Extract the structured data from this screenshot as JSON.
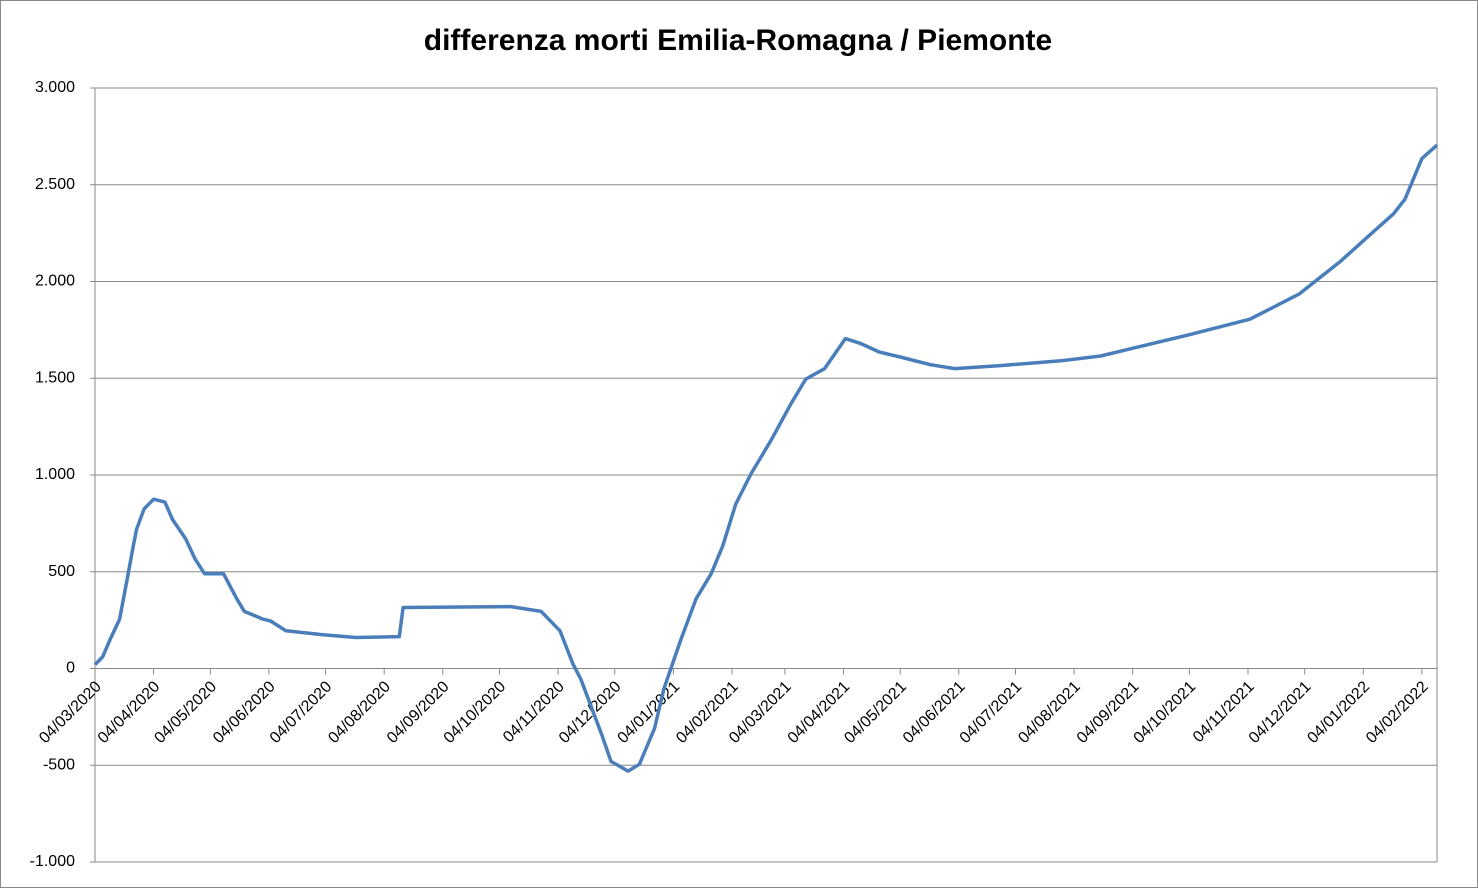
{
  "chart_data": {
    "type": "line",
    "title": "differenza morti Emilia-Romagna / Piemonte",
    "color": "#4a7ebb",
    "grid": true,
    "x": [
      "04/03/2020",
      "08/03/2020",
      "12/03/2020",
      "17/03/2020",
      "21/03/2020",
      "24/03/2020",
      "26/03/2020",
      "30/03/2020",
      "04/04/2020",
      "10/04/2020",
      "14/04/2020",
      "21/04/2020",
      "26/04/2020",
      "01/05/2020",
      "11/05/2020",
      "18/05/2020",
      "22/05/2020",
      "01/06/2020",
      "05/06/2020",
      "13/06/2020",
      "02/07/2020",
      "20/07/2020",
      "12/08/2020",
      "14/08/2020",
      "10/10/2020",
      "26/10/2020",
      "05/11/2020",
      "12/11/2020",
      "16/11/2020",
      "27/11/2020",
      "02/12/2020",
      "11/12/2020",
      "17/12/2020",
      "25/12/2020",
      "30/12/2020",
      "08/01/2021",
      "16/01/2021",
      "24/01/2021",
      "30/01/2021",
      "06/02/2021",
      "14/02/2021",
      "25/02/2021",
      "07/03/2021",
      "15/03/2021",
      "25/03/2021",
      "05/04/2021",
      "13/04/2021",
      "23/04/2021",
      "04/05/2021",
      "20/05/2021",
      "02/06/2021",
      "25/06/2021",
      "28/07/2021",
      "18/08/2021",
      "02/09/2021",
      "04/10/2021",
      "05/11/2021",
      "01/12/2021",
      "23/12/2021",
      "08/01/2022",
      "20/01/2022",
      "26/01/2022",
      "04/02/2022",
      "12/02/2022"
    ],
    "values": [
      20,
      60,
      150,
      255,
      460,
      620,
      720,
      825,
      875,
      860,
      770,
      670,
      565,
      490,
      490,
      360,
      295,
      255,
      245,
      195,
      175,
      160,
      165,
      315,
      320,
      295,
      195,
      20,
      -55,
      -340,
      -480,
      -530,
      -495,
      -310,
      -105,
      150,
      360,
      490,
      630,
      850,
      1005,
      1185,
      1365,
      1495,
      1550,
      1705,
      1680,
      1635,
      1610,
      1570,
      1550,
      1565,
      1590,
      1615,
      1650,
      1725,
      1805,
      1935,
      2105,
      2245,
      2350,
      2425,
      2635,
      2705
    ],
    "xlim": [
      "04/03/2020",
      "12/02/2022"
    ],
    "xticks": [
      "04/03/2020",
      "04/04/2020",
      "04/05/2020",
      "04/06/2020",
      "04/07/2020",
      "04/08/2020",
      "04/09/2020",
      "04/10/2020",
      "04/11/2020",
      "04/12/2020",
      "04/01/2021",
      "04/02/2021",
      "04/03/2021",
      "04/04/2021",
      "04/05/2021",
      "04/06/2021",
      "04/07/2021",
      "04/08/2021",
      "04/09/2021",
      "04/10/2021",
      "04/11/2021",
      "04/12/2021",
      "04/01/2022",
      "04/02/2022"
    ],
    "ylim": [
      -1000,
      3000
    ],
    "yticks": [
      {
        "value": -1000,
        "label": "-1.000"
      },
      -500,
      0,
      500,
      {
        "value": 1000,
        "label": "1.000"
      },
      {
        "value": 1500,
        "label": "1.500"
      },
      {
        "value": 2000,
        "label": "2.000"
      },
      {
        "value": 2500,
        "label": "2.500"
      },
      {
        "value": 3000,
        "label": "3.000"
      }
    ]
  }
}
